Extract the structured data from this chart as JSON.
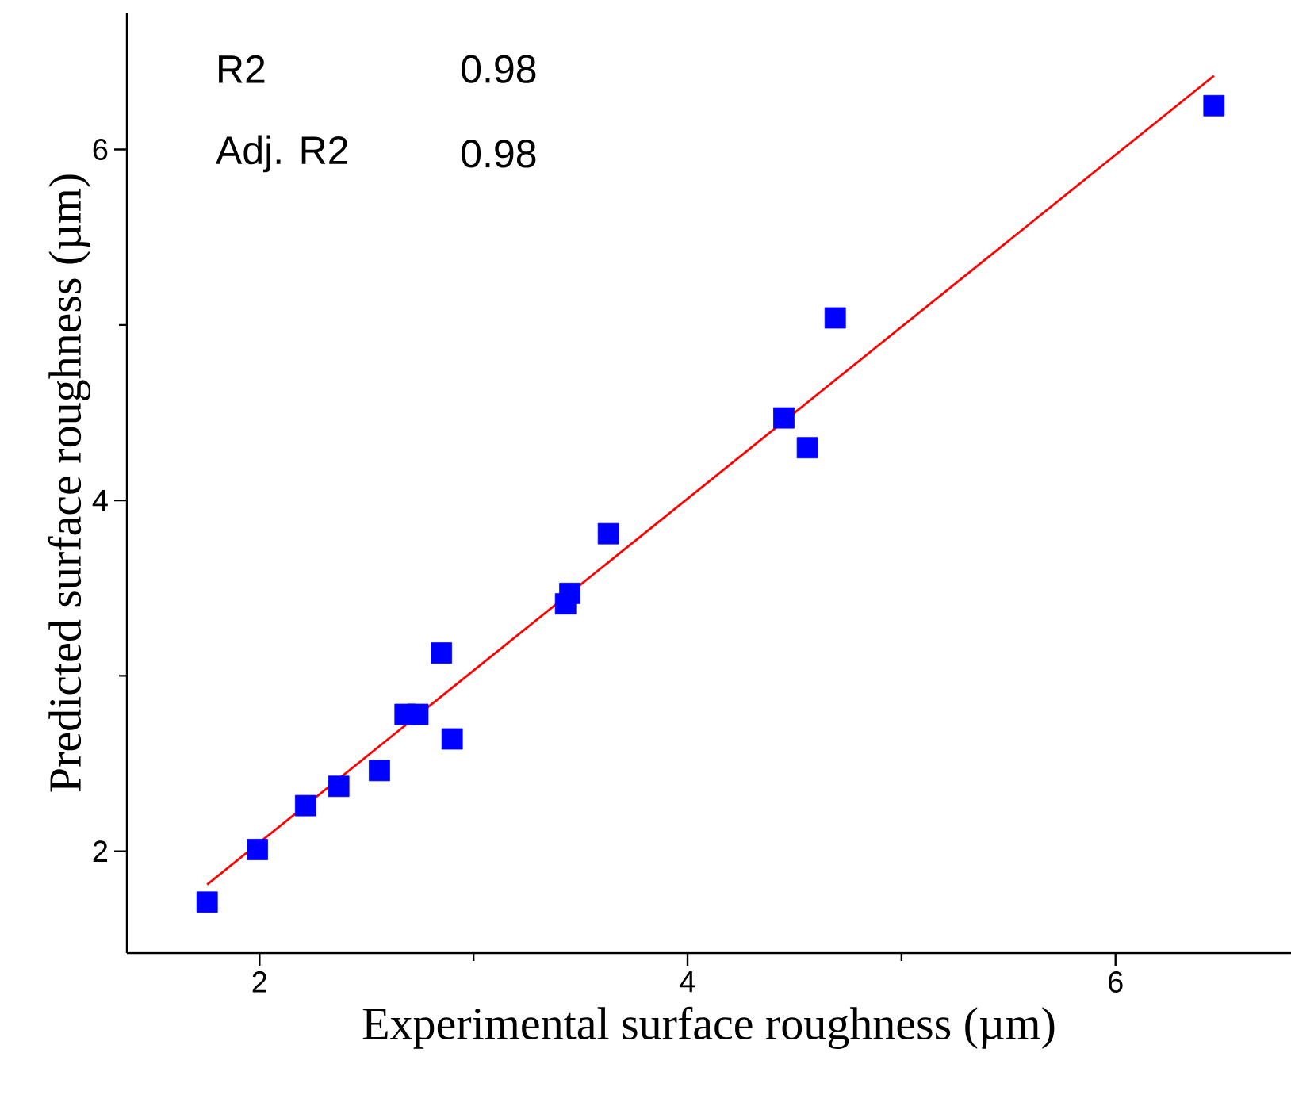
{
  "chart_data": {
    "type": "scatter",
    "xlabel": "Experimental surface roughness (µm)",
    "ylabel": "Predicted surface roughness (µm)",
    "annotations": [
      "R2",
      "0.98",
      "Adj. R2",
      "0.98"
    ],
    "xlim": [
      1.38,
      6.82
    ],
    "ylim": [
      1.42,
      6.78
    ],
    "xticks": [
      2,
      4,
      6,
      {
        "value": 3,
        "label": null
      },
      {
        "value": 5,
        "label": null
      }
    ],
    "yticks": [
      2,
      4,
      6,
      {
        "value": 3,
        "label": null
      },
      {
        "value": 5,
        "label": null
      }
    ],
    "series": [
      {
        "color": "#0000ff",
        "marker": "square",
        "x": [
          1.755,
          1.99,
          2.215,
          2.37,
          2.56,
          2.68,
          2.74,
          2.85,
          2.9,
          3.43,
          3.45,
          3.63,
          4.45,
          4.56,
          4.69,
          6.46
        ],
        "values": [
          1.71,
          2.01,
          2.26,
          2.37,
          2.46,
          2.78,
          2.78,
          3.13,
          2.64,
          3.41,
          3.47,
          3.81,
          4.47,
          4.3,
          5.04,
          6.25
        ]
      },
      {
        "type": "line",
        "color": "#ff0000",
        "marker": "none",
        "x": [
          1.755,
          6.46
        ],
        "values": [
          1.81,
          6.42
        ]
      }
    ]
  }
}
